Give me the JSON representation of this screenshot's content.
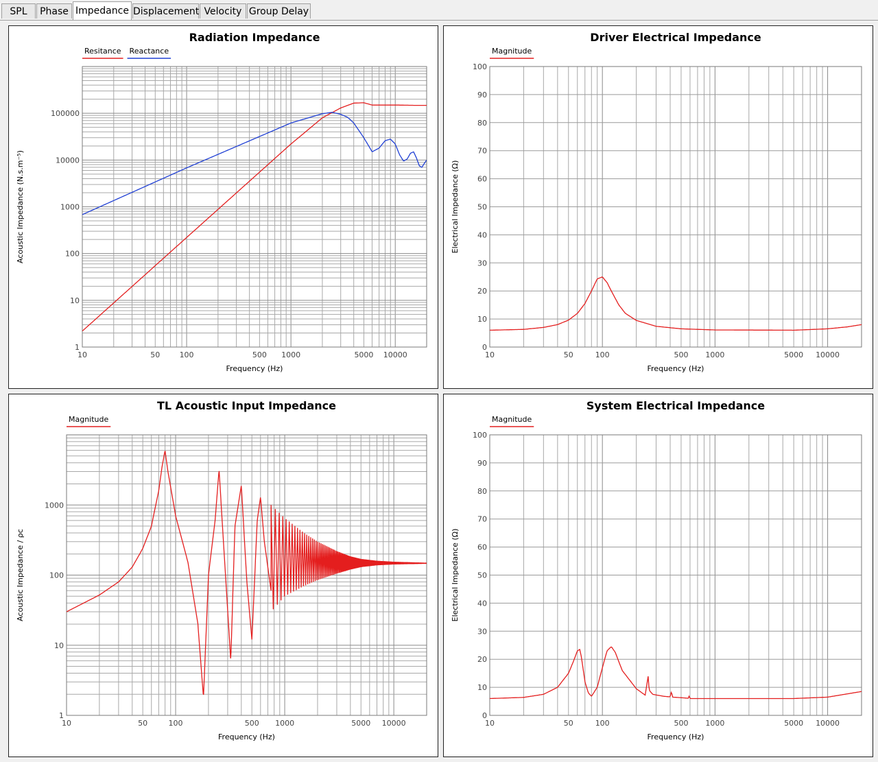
{
  "tabs": [
    {
      "label": "SPL",
      "active": false
    },
    {
      "label": "Phase",
      "active": false
    },
    {
      "label": "Impedance",
      "active": true
    },
    {
      "label": "Displacement",
      "active": false
    },
    {
      "label": "Velocity",
      "active": false
    },
    {
      "label": "Group Delay",
      "active": false
    }
  ],
  "chart_data": [
    {
      "type": "line",
      "title": "Radiation Impedance",
      "xlabel": "Frequency (Hz)",
      "ylabel": "Acoustic Impedance (N.s.m⁻⁵)",
      "xscale": "log",
      "yscale": "log",
      "xlim": [
        10,
        20000
      ],
      "ylim": [
        1,
        1000000
      ],
      "xticks": [
        10,
        50,
        100,
        500,
        1000,
        5000,
        10000
      ],
      "xticklabels": [
        "10",
        "50",
        "100",
        "500",
        "1000",
        "5000",
        "10000"
      ],
      "yticks": [
        1,
        10,
        100,
        1000,
        10000,
        100000
      ],
      "yticklabels": [
        "1",
        "10",
        "100",
        "1000",
        "10000",
        "100000"
      ],
      "grid": true,
      "legend": "top-left",
      "series": [
        {
          "name": "Resitance",
          "color": "#e41e1e",
          "x": [
            10,
            50,
            100,
            500,
            1000,
            2000,
            3000,
            4000,
            5000,
            6000,
            8000,
            10000,
            15000,
            20000
          ],
          "y": [
            2.2,
            55,
            220,
            5500,
            22000,
            80000,
            130000,
            165000,
            168000,
            150000,
            150000,
            150000,
            148000,
            148000
          ]
        },
        {
          "name": "Reactance",
          "color": "#1f3fd4",
          "x": [
            10,
            100,
            1000,
            2000,
            2500,
            3000,
            3500,
            4000,
            5000,
            6000,
            7000,
            8000,
            9000,
            10000,
            11000,
            12000,
            13000,
            14000,
            15000,
            16000,
            17000,
            18000,
            19000,
            20000
          ],
          "y": [
            680,
            6800,
            62000,
            98000,
            105000,
            95000,
            82000,
            62000,
            30000,
            15000,
            18000,
            26000,
            28000,
            22000,
            13000,
            9500,
            10500,
            14000,
            15000,
            11000,
            7500,
            7000,
            8500,
            10000
          ]
        }
      ]
    },
    {
      "type": "line",
      "title": "Driver Electrical Impedance",
      "xlabel": "Frequency (Hz)",
      "ylabel": "Electrical Impedance (Ω)",
      "xscale": "log",
      "yscale": "linear",
      "xlim": [
        10,
        20000
      ],
      "ylim": [
        0,
        100
      ],
      "xticks": [
        10,
        50,
        100,
        500,
        1000,
        5000,
        10000
      ],
      "xticklabels": [
        "10",
        "50",
        "100",
        "500",
        "1000",
        "5000",
        "10000"
      ],
      "yticks": [
        0,
        10,
        20,
        30,
        40,
        50,
        60,
        70,
        80,
        90,
        100
      ],
      "yticklabels": [
        "0",
        "10",
        "20",
        "30",
        "40",
        "50",
        "60",
        "70",
        "80",
        "90",
        "100"
      ],
      "grid": true,
      "legend": "top-left",
      "series": [
        {
          "name": "Magnitude",
          "color": "#e41e1e",
          "x": [
            10,
            20,
            30,
            40,
            50,
            60,
            70,
            80,
            90,
            100,
            110,
            120,
            140,
            160,
            200,
            300,
            500,
            1000,
            5000,
            10000,
            15000,
            20000
          ],
          "y": [
            6.0,
            6.3,
            7.0,
            8.0,
            9.6,
            12.0,
            15.5,
            20.0,
            24.3,
            25.0,
            23.0,
            20.0,
            15.0,
            12.0,
            9.5,
            7.4,
            6.5,
            6.1,
            6.0,
            6.5,
            7.2,
            8.0
          ]
        }
      ]
    },
    {
      "type": "line",
      "title": "TL Acoustic Input Impedance",
      "xlabel": "Frequency (Hz)",
      "ylabel": "Acoustic Impedance / ρc",
      "xscale": "log",
      "yscale": "log",
      "xlim": [
        10,
        20000
      ],
      "ylim": [
        1,
        10000
      ],
      "xticks": [
        10,
        50,
        100,
        500,
        1000,
        5000,
        10000
      ],
      "xticklabels": [
        "10",
        "50",
        "100",
        "500",
        "1000",
        "5000",
        "10000"
      ],
      "yticks": [
        1,
        10,
        100,
        1000
      ],
      "yticklabels": [
        "1",
        "10",
        "100",
        "1000"
      ],
      "grid": true,
      "legend": "top-left",
      "series": [
        {
          "name": "Magnitude",
          "color": "#e41e1e",
          "x": [
            10,
            20,
            30,
            40,
            50,
            60,
            70,
            75,
            80,
            85,
            100,
            130,
            160,
            180,
            200,
            230,
            250,
            280,
            320,
            350,
            400,
            450,
            500,
            560,
            600,
            650,
            750
          ],
          "y": [
            30,
            52,
            80,
            130,
            240,
            500,
            1600,
            3500,
            6000,
            3000,
            700,
            150,
            20,
            1.8,
            100,
            600,
            3200,
            180,
            6,
            500,
            1900,
            80,
            12,
            600,
            1300,
            300,
            60
          ],
          "resonance_envelope": {
            "x": [
              750,
              1000,
              1500,
              2000,
              3000,
              4000,
              5000,
              7000,
              10000,
              20000
            ],
            "upper": [
              1000,
              650,
              400,
              300,
              220,
              185,
              170,
              160,
              155,
              150
            ],
            "lower": [
              30,
              50,
              70,
              85,
              105,
              120,
              130,
              138,
              142,
              145
            ]
          }
        }
      ]
    },
    {
      "type": "line",
      "title": "System Electrical Impedance",
      "xlabel": "Frequency (Hz)",
      "ylabel": "Electrical Impedance (Ω)",
      "xscale": "log",
      "yscale": "linear",
      "xlim": [
        10,
        20000
      ],
      "ylim": [
        0,
        100
      ],
      "xticks": [
        10,
        50,
        100,
        500,
        1000,
        5000,
        10000
      ],
      "xticklabels": [
        "10",
        "50",
        "100",
        "500",
        "1000",
        "5000",
        "10000"
      ],
      "yticks": [
        0,
        10,
        20,
        30,
        40,
        50,
        60,
        70,
        80,
        90,
        100
      ],
      "yticklabels": [
        "0",
        "10",
        "20",
        "30",
        "40",
        "50",
        "60",
        "70",
        "80",
        "90",
        "100"
      ],
      "grid": true,
      "legend": "top-left",
      "series": [
        {
          "name": "Magnitude",
          "color": "#e41e1e",
          "x": [
            10,
            20,
            30,
            40,
            50,
            55,
            60,
            63,
            65,
            70,
            75,
            80,
            90,
            100,
            110,
            120,
            130,
            150,
            200,
            240,
            255,
            260,
            280,
            350,
            400,
            410,
            420,
            500,
            580,
            590,
            600,
            1000,
            5000,
            10000,
            20000
          ],
          "y": [
            6.0,
            6.4,
            7.5,
            10.0,
            15.0,
            19.0,
            23.0,
            23.5,
            21.0,
            12.0,
            8.0,
            6.8,
            10.0,
            17.0,
            23.0,
            24.5,
            22.5,
            16.0,
            9.5,
            7.2,
            14.0,
            9.0,
            7.5,
            6.8,
            6.6,
            8.5,
            6.5,
            6.3,
            6.1,
            7.0,
            6.0,
            6.0,
            6.0,
            6.5,
            8.5
          ]
        }
      ]
    }
  ]
}
